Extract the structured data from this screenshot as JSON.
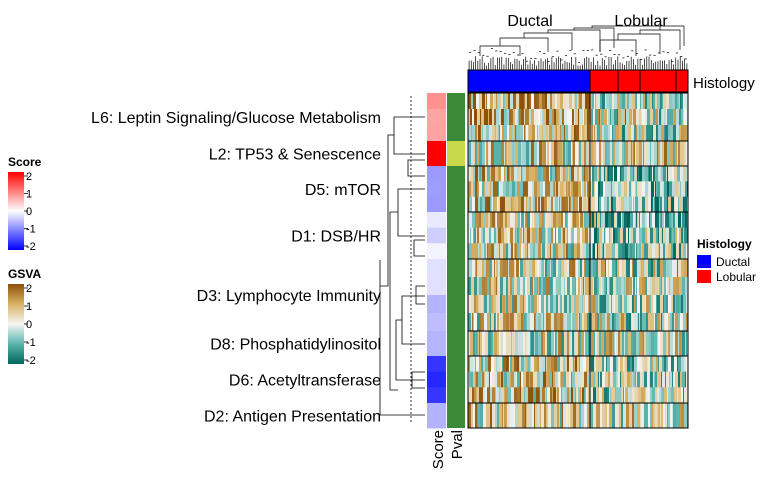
{
  "chart_data": {
    "type": "heatmap",
    "row_groups": [
      {
        "label": "L6: Leptin Signaling/Glucose Metabolism",
        "score": 0.8,
        "pval_color": "#3a8a3a"
      },
      {
        "label": "L2: TP53 & Senescence",
        "score": 2.0,
        "pval_color": "#c8d949"
      },
      {
        "label": "D5: mTOR",
        "score": -0.6,
        "pval_color": "#3a8a3a"
      },
      {
        "label": "D1: DSB/HR",
        "score": -0.2,
        "pval_color": "#3a8a3a"
      },
      {
        "label": "D3: Lymphocyte Immunity",
        "score": -0.4,
        "pval_color": "#3a8a3a"
      },
      {
        "label": "D8: Phosphatidylinositol",
        "score": -0.5,
        "pval_color": "#3a8a3a"
      },
      {
        "label": "D6: Acetyltransferase",
        "score": -1.7,
        "pval_color": "#3a8a3a"
      },
      {
        "label": "D2: Antigen Presentation",
        "score": -0.6,
        "pval_color": "#3a8a3a"
      }
    ],
    "column_groups": [
      "Ductal",
      "Lobular"
    ],
    "annotation_label": "Histology",
    "side_annotation_labels": [
      "Score",
      "Pval"
    ],
    "legends": {
      "score": {
        "title": "Score",
        "ticks": [
          "2",
          "1",
          "0",
          "-1",
          "-2"
        ]
      },
      "gsva": {
        "title": "GSVA",
        "ticks": [
          "2",
          "1",
          "0",
          "-1",
          "-2"
        ]
      },
      "histology": {
        "title": "Histology",
        "items": [
          {
            "label": "Ductal",
            "color": "#0000ff"
          },
          {
            "label": "Lobular",
            "color": "#ff0000"
          }
        ]
      }
    },
    "colors": {
      "score_high": "#ff0000",
      "score_mid": "#ffffff",
      "score_low": "#0000ff",
      "gsva_high": "#8c510a",
      "gsva_mid": "#f5f5f5",
      "gsva_low": "#01665e",
      "ductal": "#0000ff",
      "lobular": "#ff0000"
    }
  }
}
